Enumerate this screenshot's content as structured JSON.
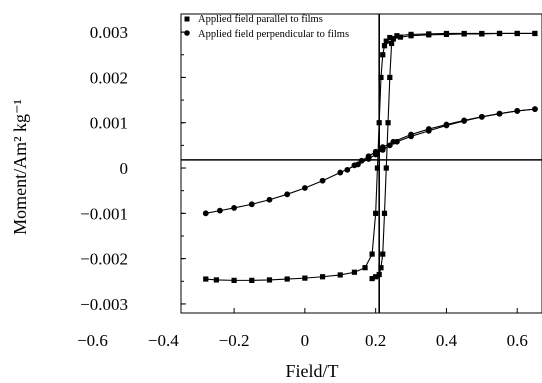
{
  "chart_data": {
    "type": "scatter",
    "xlabel": "Field/T",
    "ylabel": "Moment/Am² kg⁻¹",
    "x_ticks": [
      "−0.6",
      "−0.4",
      "−0.2",
      "0",
      "0.2",
      "0.4",
      "0.6"
    ],
    "x_tick_values": [
      -0.6,
      -0.4,
      -0.2,
      0,
      0.2,
      0.4,
      0.6
    ],
    "y_ticks": [
      "0.003",
      "0.002",
      "0.001",
      "0",
      "−0.001",
      "−0.002",
      "−0.003"
    ],
    "y_tick_values": [
      0.003,
      0.002,
      0.001,
      0,
      -0.001,
      -0.002,
      -0.003
    ],
    "xlim": [
      -0.35,
      0.67
    ],
    "ylim": [
      -0.0032,
      0.0034
    ],
    "crosshair": {
      "x": 0.21,
      "y": 0.00018
    },
    "legend_position": "top-left",
    "series": [
      {
        "name": "Applied field parallel to films",
        "marker": "square",
        "color": "#000000",
        "branches": [
          {
            "x": [
              -0.28,
              -0.25,
              -0.2,
              -0.15,
              -0.1,
              -0.05,
              0.0,
              0.05,
              0.1,
              0.14,
              0.17,
              0.19,
              0.2,
              0.205,
              0.21,
              0.215,
              0.22,
              0.225,
              0.23,
              0.24,
              0.26,
              0.3,
              0.35,
              0.4,
              0.45,
              0.5,
              0.55,
              0.6,
              0.65
            ],
            "y": [
              -0.00245,
              -0.00247,
              -0.00248,
              -0.00248,
              -0.00247,
              -0.00245,
              -0.00243,
              -0.0024,
              -0.00236,
              -0.0023,
              -0.0022,
              -0.0019,
              -0.001,
              0.0,
              0.001,
              0.002,
              0.0025,
              0.0027,
              0.0028,
              0.00288,
              0.00292,
              0.00295,
              0.00296,
              0.00297,
              0.00297,
              0.00297,
              0.00297,
              0.00297,
              0.00297
            ]
          },
          {
            "x": [
              0.65,
              0.6,
              0.55,
              0.5,
              0.45,
              0.4,
              0.35,
              0.3,
              0.27,
              0.25,
              0.245,
              0.24,
              0.235,
              0.23,
              0.225,
              0.22,
              0.215,
              0.21,
              0.2,
              0.19
            ],
            "y": [
              0.00297,
              0.00297,
              0.00297,
              0.00296,
              0.00296,
              0.00295,
              0.00294,
              0.00292,
              0.00289,
              0.00285,
              0.00275,
              0.002,
              0.001,
              0.0,
              -0.001,
              -0.0019,
              -0.0022,
              -0.00235,
              -0.0024,
              -0.00244
            ]
          }
        ]
      },
      {
        "name": "Applied field perpendicular to films",
        "marker": "circle",
        "color": "#000000",
        "branches": [
          {
            "x": [
              -0.28,
              -0.24,
              -0.2,
              -0.15,
              -0.1,
              -0.05,
              0.0,
              0.05,
              0.1,
              0.15,
              0.18,
              0.2,
              0.22,
              0.24,
              0.26,
              0.3,
              0.35,
              0.4,
              0.45,
              0.5,
              0.55,
              0.6,
              0.65
            ],
            "y": [
              -0.001,
              -0.00094,
              -0.00088,
              -0.0008,
              -0.0007,
              -0.00058,
              -0.00044,
              -0.00028,
              -0.0001,
              8e-05,
              0.0002,
              0.0003,
              0.0004,
              0.0005,
              0.00058,
              0.0007,
              0.00082,
              0.00094,
              0.00104,
              0.00113,
              0.0012,
              0.00126,
              0.0013
            ]
          },
          {
            "x": [
              0.65,
              0.6,
              0.55,
              0.5,
              0.45,
              0.4,
              0.35,
              0.3,
              0.25,
              0.22,
              0.2,
              0.18,
              0.16,
              0.14,
              0.12
            ],
            "y": [
              0.0013,
              0.00126,
              0.0012,
              0.00113,
              0.00105,
              0.00096,
              0.00086,
              0.00074,
              0.00058,
              0.00046,
              0.00036,
              0.00026,
              0.00016,
              6e-05,
              -4e-05
            ]
          }
        ]
      }
    ]
  }
}
